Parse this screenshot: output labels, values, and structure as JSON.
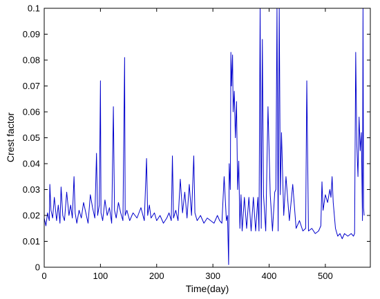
{
  "chart_data": {
    "type": "line",
    "xlabel": "Time(day)",
    "ylabel": "Crest factor",
    "xlim": [
      0,
      580
    ],
    "ylim": [
      0,
      0.1
    ],
    "x_ticks": [
      0,
      100,
      200,
      300,
      400,
      500
    ],
    "y_ticks": [
      0,
      0.01,
      0.02,
      0.03,
      0.04,
      0.05,
      0.06,
      0.07,
      0.08,
      0.09,
      0.1
    ],
    "x_tick_labels": [
      "0",
      "100",
      "200",
      "300",
      "400",
      "500"
    ],
    "y_tick_labels": [
      "0",
      "0.01",
      "0.02",
      "0.03",
      "0.04",
      "0.05",
      "0.06",
      "0.07",
      "0.08",
      "0.09",
      "0.1"
    ],
    "grid": false,
    "line_color": "#0000cc",
    "series": [
      {
        "x": [
          0,
          3,
          6,
          9,
          10,
          12,
          15,
          18,
          22,
          25,
          28,
          30,
          33,
          36,
          40,
          44,
          47,
          50,
          53,
          55,
          58,
          62,
          66,
          70,
          74,
          78,
          82,
          86,
          90,
          93,
          95,
          98,
          100,
          101,
          104,
          108,
          112,
          116,
          120,
          123,
          125,
          128,
          132,
          136,
          140,
          143,
          144,
          147,
          152,
          158,
          165,
          172,
          178,
          182,
          184,
          187,
          190,
          196,
          200,
          206,
          212,
          218,
          222,
          226,
          228,
          230,
          234,
          238,
          242,
          246,
          250,
          254,
          258,
          262,
          266,
          268,
          272,
          278,
          284,
          290,
          296,
          302,
          308,
          312,
          316,
          320,
          324,
          326,
          328,
          329,
          331,
          332,
          333,
          335,
          336,
          338,
          340,
          342,
          344,
          346,
          348,
          350,
          352,
          356,
          360,
          364,
          368,
          372,
          376,
          380,
          382,
          384,
          386,
          388,
          390,
          394,
          398,
          402,
          406,
          410,
          412,
          414,
          416,
          418,
          420,
          422,
          426,
          430,
          436,
          442,
          448,
          454,
          460,
          465,
          467,
          470,
          476,
          482,
          488,
          492,
          494,
          496,
          500,
          504,
          508,
          510,
          512,
          514,
          518,
          522,
          526,
          530,
          534,
          540,
          546,
          550,
          552,
          554,
          556,
          558,
          560,
          562,
          564,
          566,
          567,
          568,
          569
        ],
        "y": [
          0.019,
          0.016,
          0.021,
          0.018,
          0.032,
          0.022,
          0.019,
          0.027,
          0.018,
          0.024,
          0.017,
          0.031,
          0.02,
          0.018,
          0.029,
          0.02,
          0.024,
          0.019,
          0.035,
          0.021,
          0.017,
          0.022,
          0.019,
          0.025,
          0.021,
          0.017,
          0.028,
          0.023,
          0.019,
          0.044,
          0.02,
          0.024,
          0.072,
          0.021,
          0.018,
          0.026,
          0.02,
          0.023,
          0.017,
          0.062,
          0.022,
          0.019,
          0.025,
          0.021,
          0.018,
          0.081,
          0.02,
          0.022,
          0.018,
          0.021,
          0.019,
          0.023,
          0.018,
          0.042,
          0.02,
          0.024,
          0.019,
          0.021,
          0.018,
          0.02,
          0.017,
          0.019,
          0.021,
          0.018,
          0.043,
          0.019,
          0.022,
          0.018,
          0.034,
          0.021,
          0.029,
          0.019,
          0.032,
          0.02,
          0.043,
          0.021,
          0.018,
          0.02,
          0.017,
          0.019,
          0.018,
          0.017,
          0.02,
          0.018,
          0.017,
          0.035,
          0.018,
          0.02,
          0.001,
          0.04,
          0.03,
          0.083,
          0.07,
          0.082,
          0.06,
          0.068,
          0.05,
          0.064,
          0.03,
          0.041,
          0.015,
          0.028,
          0.014,
          0.027,
          0.015,
          0.027,
          0.014,
          0.027,
          0.014,
          0.027,
          0.014,
          0.1,
          0.015,
          0.088,
          0.028,
          0.014,
          0.062,
          0.028,
          0.014,
          0.029,
          0.03,
          0.1,
          0.014,
          0.1,
          0.028,
          0.052,
          0.02,
          0.035,
          0.018,
          0.032,
          0.015,
          0.018,
          0.014,
          0.015,
          0.072,
          0.014,
          0.015,
          0.013,
          0.014,
          0.016,
          0.033,
          0.022,
          0.028,
          0.025,
          0.03,
          0.027,
          0.035,
          0.025,
          0.015,
          0.012,
          0.013,
          0.011,
          0.013,
          0.012,
          0.013,
          0.012,
          0.013,
          0.083,
          0.047,
          0.035,
          0.058,
          0.045,
          0.052,
          0.018,
          0.1,
          0.023,
          0.02
        ]
      }
    ]
  }
}
